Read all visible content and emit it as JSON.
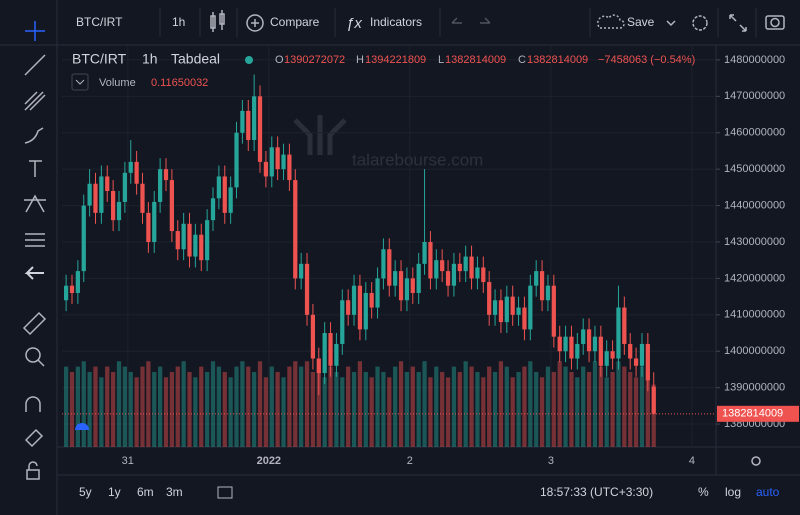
{
  "toolbar": {
    "symbol": "BTC/IRT",
    "interval": "1h",
    "compare": "Compare",
    "indicators": "Indicators",
    "save": "Save"
  },
  "legend": {
    "symbol": "BTC/IRT",
    "interval": "1h",
    "exchange": "Tabdeal",
    "open_label": "O",
    "high_label": "H",
    "low_label": "L",
    "close_label": "C",
    "change": "−7458063 (−0.54%)",
    "volume_label": "Volume",
    "volume_value": "0.11650032"
  },
  "watermark": "talarebourse.com",
  "bottom_bar": {
    "ranges": [
      "5y",
      "1y",
      "6m",
      "3m"
    ],
    "clock": "18:57:33 (UTC+3:30)",
    "percent": "%",
    "log": "log",
    "auto": "auto"
  },
  "chart_data": {
    "type": "candlestick",
    "up_color": "#26a69a",
    "down_color": "#ef5350",
    "grid": true,
    "ylim": [
      1373700000,
      1484100000
    ],
    "yticks": [
      1380000000,
      1390000000,
      1400000000,
      1410000000,
      1420000000,
      1430000000,
      1440000000,
      1450000000,
      1460000000,
      1470000000,
      1480000000
    ],
    "xlim": [
      -0.7,
      110.6
    ],
    "xticks": [
      {
        "value": 10.5,
        "label": "31"
      },
      {
        "value": 34.5,
        "label": "2022"
      },
      {
        "value": 58.5,
        "label": "2"
      },
      {
        "value": 82.5,
        "label": "3"
      },
      {
        "value": 106.5,
        "label": "4"
      }
    ],
    "volume_lim": [
      0,
      0.75
    ],
    "ohlc": [
      [
        1414000000.0,
        1421000000.0,
        1411000000.0,
        1418000000.0
      ],
      [
        1418000000.0,
        1421000000.0,
        1413000000.0,
        1416000000.0
      ],
      [
        1416000000.0,
        1425000000.0,
        1413000000.0,
        1422000000.0
      ],
      [
        1422000000.0,
        1443000000.0,
        1419000000.0,
        1440000000.0
      ],
      [
        1440000000.0,
        1450000000.0,
        1437000000.0,
        1446000000.0
      ],
      [
        1446000000.0,
        1449000000.0,
        1435000000.0,
        1438000000.0
      ],
      [
        1438000000.0,
        1451000000.0,
        1435000000.0,
        1448000000.0
      ],
      [
        1448000000.0,
        1451000000.0,
        1441000000.0,
        1444000000.0
      ],
      [
        1444000000.0,
        1447000000.0,
        1433000000.0,
        1436000000.0
      ],
      [
        1436000000.0,
        1444000000.0,
        1433000000.0,
        1441000000.0
      ],
      [
        1441000000.0,
        1452000000.0,
        1438000000.0,
        1449000000.0
      ],
      [
        1449000000.0,
        1458000000.0,
        1446000000.0,
        1452000000.0
      ],
      [
        1452000000.0,
        1455000000.0,
        1443000000.0,
        1446000000.0
      ],
      [
        1446000000.0,
        1449000000.0,
        1435000000.0,
        1438000000.0
      ],
      [
        1438000000.0,
        1441000000.0,
        1427000000.0,
        1430000000.0
      ],
      [
        1430000000.0,
        1444000000.0,
        1427000000.0,
        1441000000.0
      ],
      [
        1441000000.0,
        1453000000.0,
        1438000000.0,
        1450000000.0
      ],
      [
        1450000000.0,
        1453000000.0,
        1444000000.0,
        1447000000.0
      ],
      [
        1447000000.0,
        1450000000.0,
        1430000000.0,
        1433000000.0
      ],
      [
        1433000000.0,
        1436000000.0,
        1425000000.0,
        1428000000.0
      ],
      [
        1428000000.0,
        1438000000.0,
        1425000000.0,
        1435000000.0
      ],
      [
        1435000000.0,
        1438000000.0,
        1423000000.0,
        1426000000.0
      ],
      [
        1426000000.0,
        1435000000.0,
        1423000000.0,
        1432000000.0
      ],
      [
        1432000000.0,
        1435000000.0,
        1422000000.0,
        1425000000.0
      ],
      [
        1425000000.0,
        1439000000.0,
        1422000000.0,
        1436000000.0
      ],
      [
        1436000000.0,
        1445000000.0,
        1433000000.0,
        1442000000.0
      ],
      [
        1442000000.0,
        1451000000.0,
        1439000000.0,
        1448000000.0
      ],
      [
        1448000000.0,
        1451000000.0,
        1435000000.0,
        1438000000.0
      ],
      [
        1438000000.0,
        1448000000.0,
        1435000000.0,
        1445000000.0
      ],
      [
        1445000000.0,
        1463000000.0,
        1442000000.0,
        1460000000.0
      ],
      [
        1460000000.0,
        1469000000.0,
        1457000000.0,
        1466000000.0
      ],
      [
        1466000000.0,
        1469000000.0,
        1455000000.0,
        1458000000.0
      ],
      [
        1458000000.0,
        1476000000.0,
        1455000000.0,
        1470000000.0
      ],
      [
        1470000000.0,
        1473000000.0,
        1449000000.0,
        1452000000.0
      ],
      [
        1452000000.0,
        1455000000.0,
        1445000000.0,
        1448000000.0
      ],
      [
        1448000000.0,
        1459000000.0,
        1445000000.0,
        1456000000.0
      ],
      [
        1456000000.0,
        1459000000.0,
        1447000000.0,
        1450000000.0
      ],
      [
        1450000000.0,
        1457000000.0,
        1447000000.0,
        1454000000.0
      ],
      [
        1454000000.0,
        1457000000.0,
        1444000000.0,
        1447000000.0
      ],
      [
        1447000000.0,
        1450000000.0,
        1417000000.0,
        1420000000.0
      ],
      [
        1420000000.0,
        1427000000.0,
        1417000000.0,
        1424000000.0
      ],
      [
        1424000000.0,
        1427000000.0,
        1407000000.0,
        1410000000.0
      ],
      [
        1410000000.0,
        1413000000.0,
        1395000000.0,
        1398000000.0
      ],
      [
        1398000000.0,
        1401000000.0,
        1388000000.0,
        1394000000.0
      ],
      [
        1394000000.0,
        1408000000.0,
        1391000000.0,
        1405000000.0
      ],
      [
        1405000000.0,
        1408000000.0,
        1393000000.0,
        1396000000.0
      ],
      [
        1396000000.0,
        1405000000.0,
        1393000000.0,
        1402000000.0
      ],
      [
        1402000000.0,
        1417000000.0,
        1399000000.0,
        1414000000.0
      ],
      [
        1414000000.0,
        1417000000.0,
        1407000000.0,
        1410000000.0
      ],
      [
        1410000000.0,
        1421000000.0,
        1407000000.0,
        1418000000.0
      ],
      [
        1418000000.0,
        1421000000.0,
        1403000000.0,
        1406000000.0
      ],
      [
        1406000000.0,
        1419000000.0,
        1403000000.0,
        1416000000.0
      ],
      [
        1416000000.0,
        1419000000.0,
        1409000000.0,
        1412000000.0
      ],
      [
        1412000000.0,
        1423000000.0,
        1409000000.0,
        1420000000.0
      ],
      [
        1420000000.0,
        1431000000.0,
        1417000000.0,
        1428000000.0
      ],
      [
        1428000000.0,
        1431000000.0,
        1415000000.0,
        1418000000.0
      ],
      [
        1418000000.0,
        1425000000.0,
        1415000000.0,
        1422000000.0
      ],
      [
        1422000000.0,
        1425000000.0,
        1411000000.0,
        1414000000.0
      ],
      [
        1414000000.0,
        1423000000.0,
        1411000000.0,
        1420000000.0
      ],
      [
        1420000000.0,
        1423000000.0,
        1413000000.0,
        1416000000.0
      ],
      [
        1416000000.0,
        1427000000.0,
        1413000000.0,
        1424000000.0
      ],
      [
        1424000000.0,
        1450000000.0,
        1421000000.0,
        1430000000.0
      ],
      [
        1430000000.0,
        1433000000.0,
        1417000000.0,
        1420000000.0
      ],
      [
        1420000000.0,
        1428000000.0,
        1417000000.0,
        1425000000.0
      ],
      [
        1425000000.0,
        1428000000.0,
        1419000000.0,
        1422000000.0
      ],
      [
        1422000000.0,
        1425000000.0,
        1415000000.0,
        1418000000.0
      ],
      [
        1418000000.0,
        1427000000.0,
        1415000000.0,
        1424000000.0
      ],
      [
        1424000000.0,
        1427000000.0,
        1419000000.0,
        1422000000.0
      ],
      [
        1422000000.0,
        1429000000.0,
        1419000000.0,
        1426000000.0
      ],
      [
        1426000000.0,
        1429000000.0,
        1417000000.0,
        1420000000.0
      ],
      [
        1420000000.0,
        1426000000.0,
        1417000000.0,
        1423000000.0
      ],
      [
        1423000000.0,
        1426000000.0,
        1416000000.0,
        1419000000.0
      ],
      [
        1419000000.0,
        1422000000.0,
        1407000000.0,
        1410000000.0
      ],
      [
        1410000000.0,
        1417000000.0,
        1407000000.0,
        1414000000.0
      ],
      [
        1414000000.0,
        1417000000.0,
        1405000000.0,
        1408000000.0
      ],
      [
        1408000000.0,
        1418000000.0,
        1405000000.0,
        1415000000.0
      ],
      [
        1415000000.0,
        1418000000.0,
        1407000000.0,
        1410000000.0
      ],
      [
        1410000000.0,
        1415000000.0,
        1407000000.0,
        1412000000.0
      ],
      [
        1412000000.0,
        1415000000.0,
        1403000000.0,
        1406000000.0
      ],
      [
        1406000000.0,
        1421000000.0,
        1403000000.0,
        1418000000.0
      ],
      [
        1418000000.0,
        1425000000.0,
        1415000000.0,
        1422000000.0
      ],
      [
        1422000000.0,
        1425000000.0,
        1411000000.0,
        1414000000.0
      ],
      [
        1414000000.0,
        1421000000.0,
        1411000000.0,
        1418000000.0
      ],
      [
        1418000000.0,
        1421000000.0,
        1401000000.0,
        1404000000.0
      ],
      [
        1404000000.0,
        1407000000.0,
        1397000000.0,
        1400000000.0
      ],
      [
        1400000000.0,
        1407000000.0,
        1397000000.0,
        1404000000.0
      ],
      [
        1404000000.0,
        1407000000.0,
        1395000000.0,
        1398000000.0
      ],
      [
        1398000000.0,
        1405000000.0,
        1395000000.0,
        1402000000.0
      ],
      [
        1402000000.0,
        1409000000.0,
        1399000000.0,
        1406000000.0
      ],
      [
        1406000000.0,
        1409000000.0,
        1397000000.0,
        1400000000.0
      ],
      [
        1400000000.0,
        1407000000.0,
        1397000000.0,
        1404000000.0
      ],
      [
        1404000000.0,
        1407000000.0,
        1393000000.0,
        1396000000.0
      ],
      [
        1396000000.0,
        1403000000.0,
        1393000000.0,
        1400000000.0
      ],
      [
        1400000000.0,
        1403000000.0,
        1395000000.0,
        1398000000.0
      ],
      [
        1398000000.0,
        1418000000.0,
        1395000000.0,
        1412000000.0
      ],
      [
        1412000000.0,
        1415000000.0,
        1399000000.0,
        1402000000.0
      ],
      [
        1402000000.0,
        1405000000.0,
        1395000000.0,
        1398000000.0
      ],
      [
        1398000000.0,
        1401000000.0,
        1393000000.0,
        1396000000.0
      ],
      [
        1396000000.0,
        1405000000.0,
        1393000000.0,
        1402000000.0
      ],
      [
        1402000000.0,
        1405000000.0,
        1389000000.0,
        1392000000.0
      ],
      [
        1390272072,
        1394221809,
        1382814009,
        1382814009
      ]
    ],
    "volume": [
      0.15,
      0.14,
      0.15,
      0.16,
      0.14,
      0.15,
      0.13,
      0.15,
      0.14,
      0.16,
      0.15,
      0.14,
      0.13,
      0.15,
      0.16,
      0.14,
      0.15,
      0.13,
      0.14,
      0.15,
      0.16,
      0.14,
      0.13,
      0.15,
      0.14,
      0.16,
      0.15,
      0.14,
      0.13,
      0.15,
      0.16,
      0.15,
      0.14,
      0.16,
      0.13,
      0.15,
      0.14,
      0.13,
      0.15,
      0.16,
      0.15,
      0.16,
      0.14,
      0.15,
      0.13,
      0.15,
      0.14,
      0.13,
      0.15,
      0.14,
      0.16,
      0.14,
      0.13,
      0.15,
      0.14,
      0.13,
      0.15,
      0.16,
      0.14,
      0.15,
      0.14,
      0.16,
      0.13,
      0.15,
      0.14,
      0.13,
      0.15,
      0.14,
      0.16,
      0.15,
      0.14,
      0.13,
      0.15,
      0.14,
      0.16,
      0.15,
      0.13,
      0.14,
      0.15,
      0.16,
      0.14,
      0.13,
      0.15,
      0.14,
      0.16,
      0.15,
      0.14,
      0.13,
      0.15,
      0.14,
      0.16,
      0.15,
      0.13,
      0.14,
      0.16,
      0.15,
      0.14,
      0.13,
      0.15,
      0.14,
      0.1165
    ]
  }
}
